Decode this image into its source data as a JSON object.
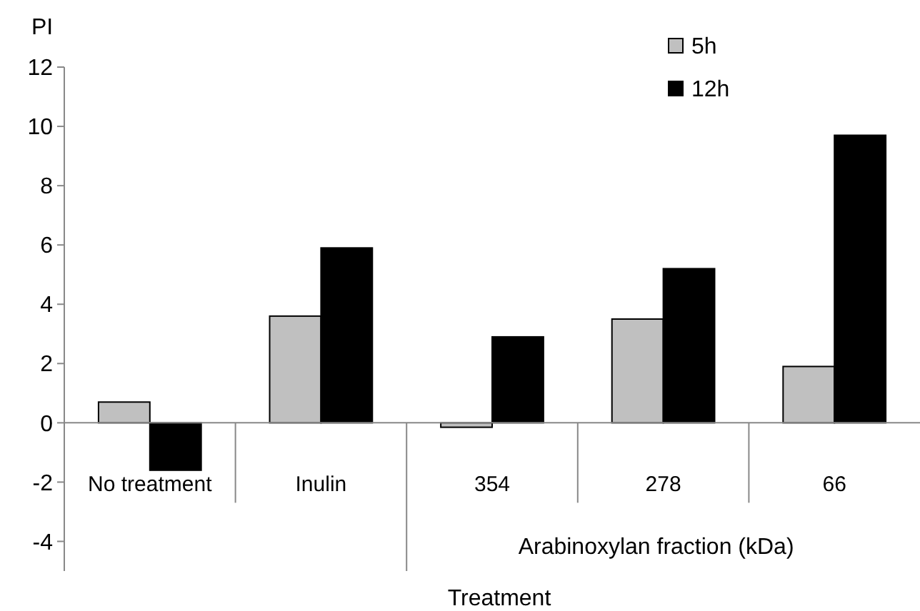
{
  "chart_data": {
    "type": "bar",
    "xlabel": "Treatment",
    "ylabel": "PI",
    "categories": [
      "No treatment",
      "Inulin",
      "354",
      "278",
      "66"
    ],
    "series": [
      {
        "name": "5h",
        "color": "#c0c0c0",
        "values": [
          0.7,
          3.6,
          -0.15,
          3.5,
          1.9
        ]
      },
      {
        "name": "12h",
        "color": "#000000",
        "values": [
          -1.6,
          5.9,
          2.9,
          5.2,
          9.7
        ]
      }
    ],
    "ylim": [
      -5,
      12
    ],
    "yticks": [
      -4,
      -2,
      0,
      2,
      4,
      6,
      8,
      10,
      12
    ],
    "grid": false,
    "legend": "top right",
    "annotations": [
      "Arabinoxylan fraction (kDa)"
    ]
  }
}
